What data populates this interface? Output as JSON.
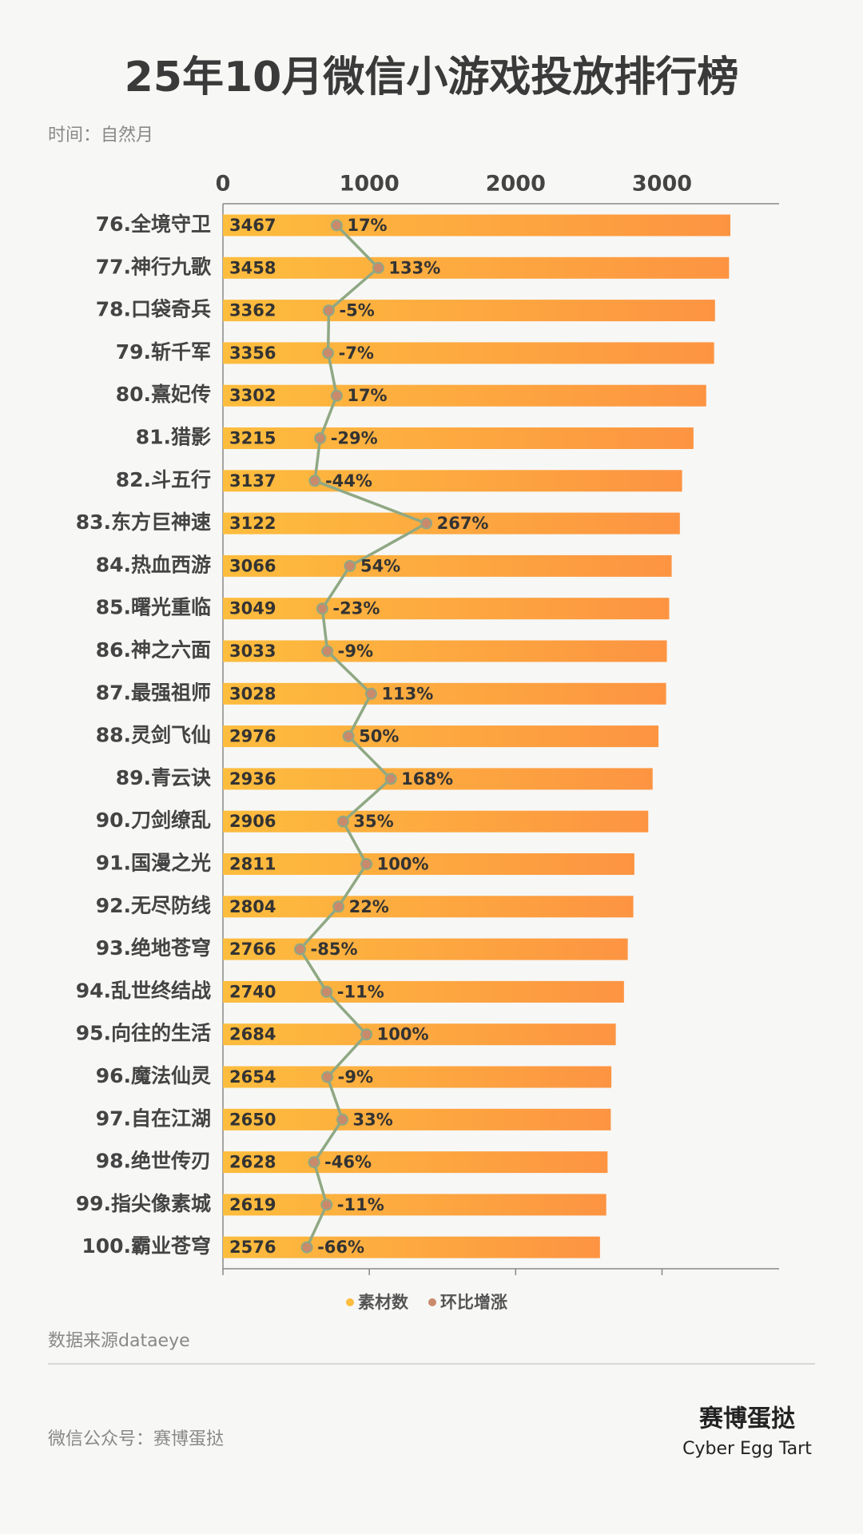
{
  "chart_data": {
    "type": "bar",
    "orientation": "horizontal",
    "title": "25年10月微信小游戏投放排行榜",
    "subtitle": "时间：自然月",
    "categories": [
      "76.全境守卫",
      "77.神行九歌",
      "78.口袋奇兵",
      "79.斩千军",
      "80.熹妃传",
      "81.猎影",
      "82.斗五行",
      "83.东方巨神速",
      "84.热血西游",
      "85.曙光重临",
      "86.神之六面",
      "87.最强祖师",
      "88.灵剑飞仙",
      "89.青云诀",
      "90.刀剑缭乱",
      "91.国漫之光",
      "92.无尽防线",
      "93.绝地苍穹",
      "94.乱世终结战",
      "95.向往的生活",
      "96.魔法仙灵",
      "97.自在江湖",
      "98.绝世传刃",
      "99.指尖像素城",
      "100.霸业苍穹"
    ],
    "series": [
      {
        "name": "素材数",
        "color": "#fdbd3d",
        "values": [
          3467,
          3458,
          3362,
          3356,
          3302,
          3215,
          3137,
          3122,
          3066,
          3049,
          3033,
          3028,
          2976,
          2936,
          2906,
          2811,
          2804,
          2766,
          2740,
          2684,
          2654,
          2650,
          2628,
          2619,
          2576
        ]
      },
      {
        "name": "环比增涨",
        "type": "line",
        "axis": "x2",
        "color": "#8fa884",
        "values": [
          17,
          133,
          -5,
          -7,
          17,
          -29,
          -44,
          267,
          54,
          -23,
          -9,
          113,
          50,
          168,
          35,
          100,
          22,
          -85,
          -11,
          100,
          -9,
          33,
          -46,
          -11,
          -66
        ],
        "value_labels": [
          "17%",
          "133%",
          "-5%",
          "-7%",
          "17%",
          "-29%",
          "-44%",
          "267%",
          "54%",
          "-23%",
          "-9%",
          "113%",
          "50%",
          "168%",
          "35%",
          "100%",
          "22%",
          "-85%",
          "-11%",
          "100%",
          "-9%",
          "33%",
          "-46%",
          "-11%",
          "-66%"
        ]
      }
    ],
    "xlim": [
      0,
      3800
    ],
    "xticks": [
      0,
      1000,
      2000,
      3000
    ],
    "x2lim": [
      -300,
      1250
    ],
    "source": "数据来源dataeye"
  },
  "footer": {
    "account": "微信公众号：赛博蛋挞",
    "brand": "赛博蛋挞",
    "brand_en": "Cyber Egg Tart"
  }
}
